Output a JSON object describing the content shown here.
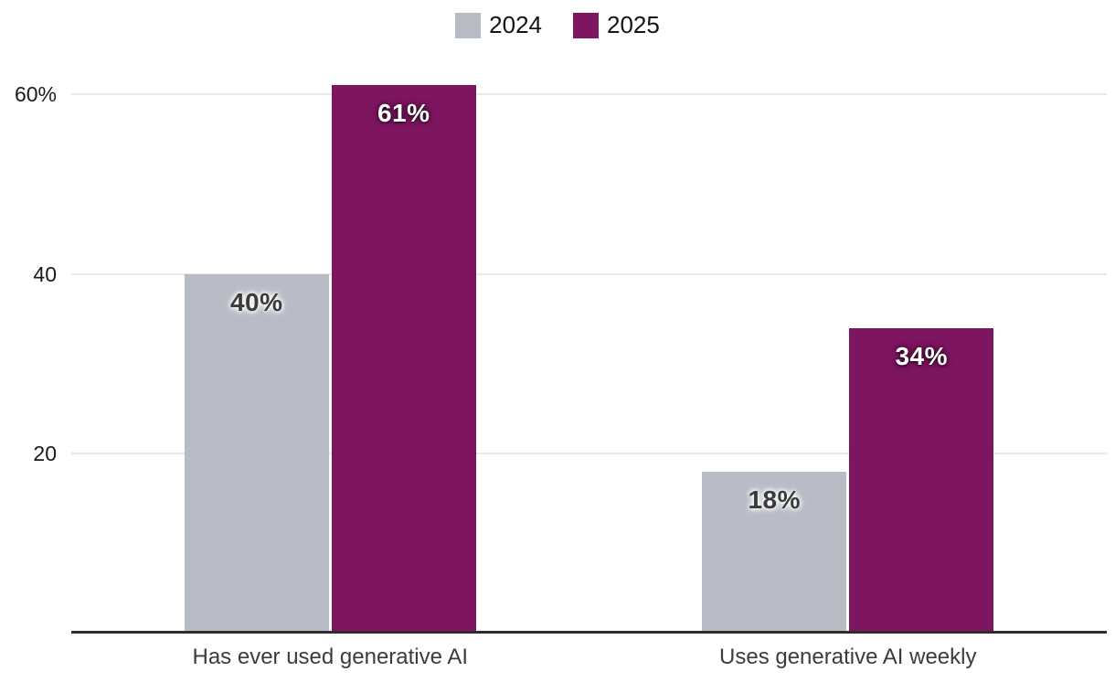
{
  "chart_data": {
    "type": "bar",
    "title": "",
    "xlabel": "",
    "ylabel": "",
    "categories": [
      "Has ever used generative AI",
      "Uses generative AI weekly"
    ],
    "series": [
      {
        "name": "2024",
        "color": "#b8bcc7",
        "label_color": "#3b3b3b",
        "label_style": "dark-on-light",
        "values": [
          40,
          18
        ],
        "labels": [
          "40%",
          "18%"
        ]
      },
      {
        "name": "2025",
        "color": "#7e1560",
        "label_color": "#ffffff",
        "label_style": "light-on-dark",
        "values": [
          61,
          34
        ],
        "labels": [
          "61%",
          "34%"
        ]
      }
    ],
    "yticks": [
      {
        "value": 20,
        "label": "20"
      },
      {
        "value": 40,
        "label": "40"
      },
      {
        "value": 60,
        "label": "60%"
      }
    ],
    "ylim": [
      0,
      70.5
    ],
    "grid": true,
    "legend_position": "top-center"
  }
}
